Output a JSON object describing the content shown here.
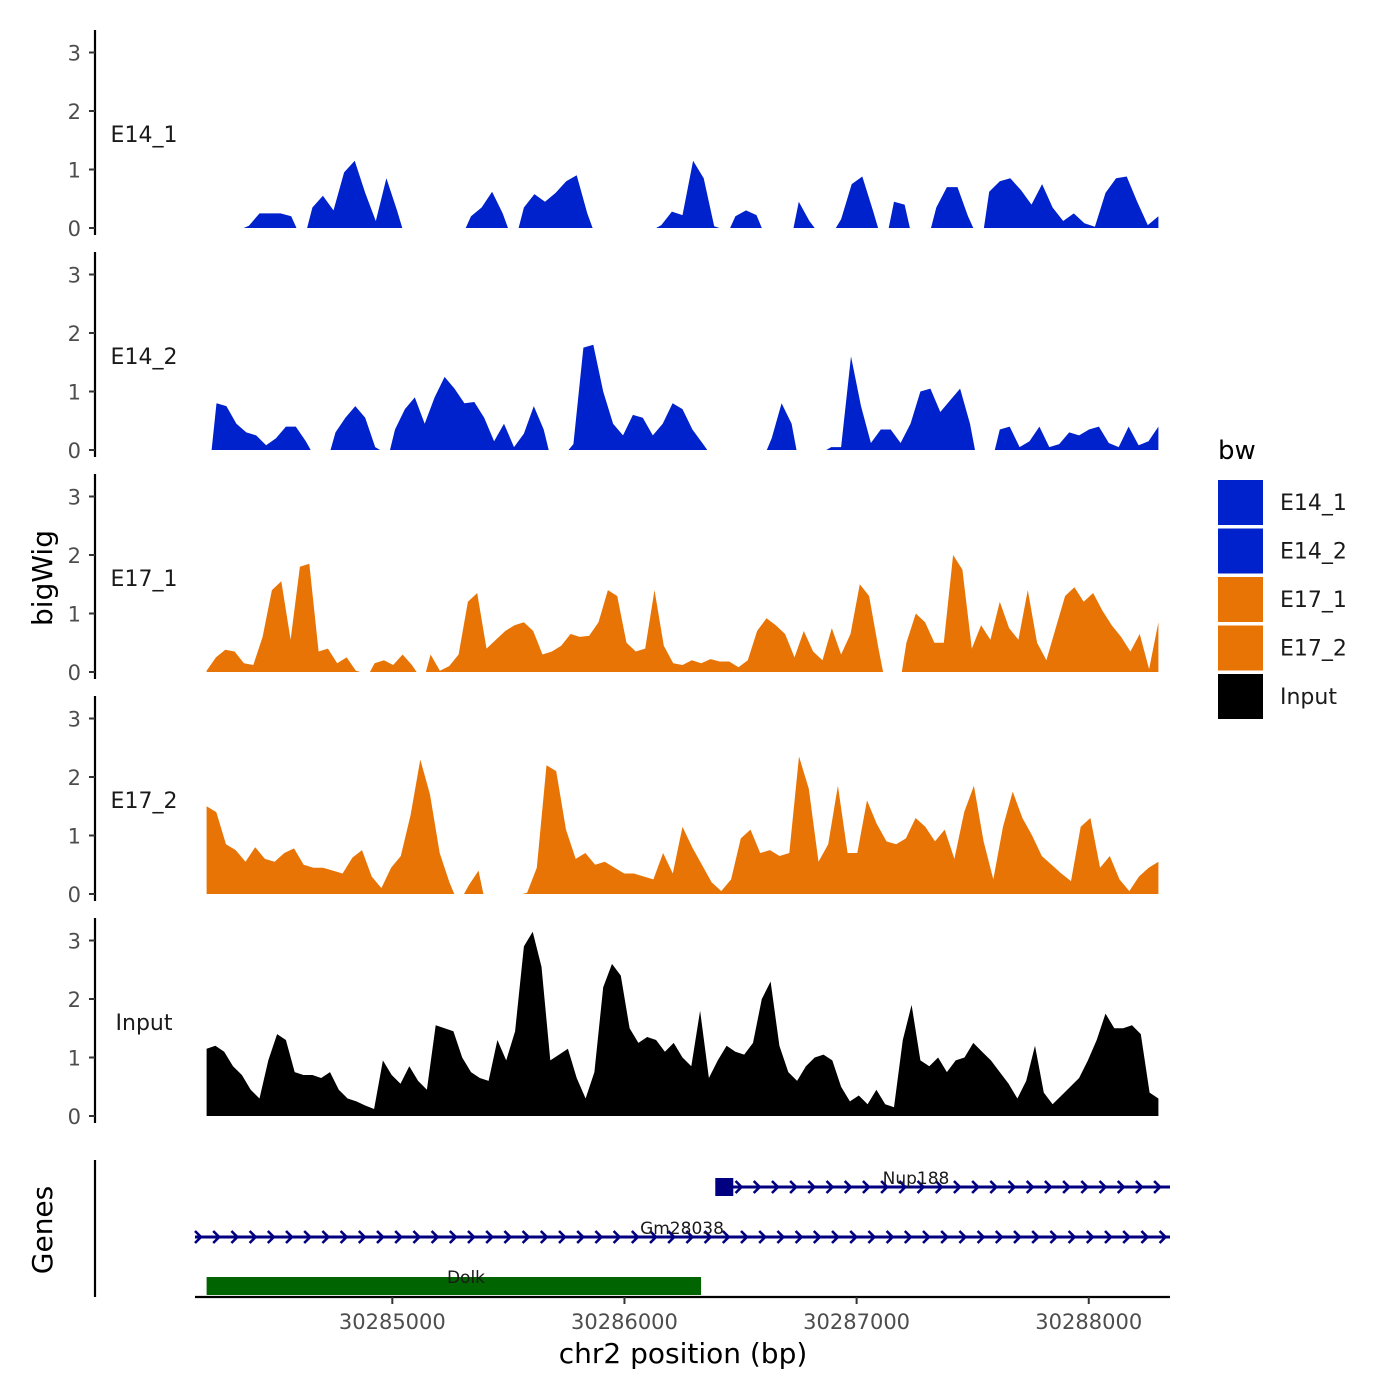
{
  "chart_data": {
    "type": "area",
    "ylabel": "bigWig",
    "genes_label": "Genes",
    "xlabel": "chr2 position (bp)",
    "xlim": [
      30284150,
      30288350
    ],
    "ylim": [
      0,
      3.3
    ],
    "y_ticks": [
      "0",
      "1",
      "2",
      "3"
    ],
    "x_ticks": [
      {
        "value": 30285000,
        "label": "30285000"
      },
      {
        "value": 30286000,
        "label": "30286000"
      },
      {
        "value": 30287000,
        "label": "30287000"
      },
      {
        "value": 30288000,
        "label": "30288000"
      }
    ],
    "legend": {
      "title": "bw",
      "items": [
        {
          "label": "E14_1",
          "color": "#0022CC"
        },
        {
          "label": "E14_2",
          "color": "#0022CC"
        },
        {
          "label": "E17_1",
          "color": "#E87405"
        },
        {
          "label": "E17_2",
          "color": "#E87405"
        },
        {
          "label": "Input",
          "color": "#000000"
        }
      ]
    },
    "series": [
      {
        "name": "E14_1",
        "label": "E14_1",
        "color": "#0022CC",
        "x_start": 30284200,
        "x_end": 30288300,
        "values": [
          0,
          0,
          0,
          0,
          0.04,
          0.25,
          0.25,
          0.25,
          0.2,
          0,
          0.35,
          0.55,
          0.3,
          0.95,
          1.15,
          0.6,
          0.12,
          0.85,
          0.3,
          0,
          0,
          0,
          0,
          0,
          0,
          0.2,
          0.35,
          0.62,
          0.25,
          0,
          0.35,
          0.58,
          0.45,
          0.6,
          0.8,
          0.9,
          0.25,
          0,
          0,
          0,
          0,
          0,
          0,
          0.05,
          0.28,
          0.22,
          1.15,
          0.85,
          0.03,
          0,
          0.2,
          0.3,
          0.22,
          0,
          0,
          0,
          0.45,
          0.12,
          0,
          0,
          0.15,
          0.75,
          0.88,
          0.3,
          0,
          0.45,
          0.4,
          0,
          0,
          0.35,
          0.7,
          0.7,
          0.2,
          0,
          0.62,
          0.8,
          0.85,
          0.65,
          0.4,
          0.75,
          0.35,
          0.12,
          0.25,
          0.08,
          0.02,
          0.6,
          0.85,
          0.88,
          0.45,
          0.05,
          0.2
        ]
      },
      {
        "name": "E14_2",
        "label": "E14_2",
        "color": "#0022CC",
        "x_start": 30284200,
        "x_end": 30288300,
        "values": [
          0,
          0.8,
          0.75,
          0.45,
          0.3,
          0.25,
          0.08,
          0.2,
          0.4,
          0.4,
          0.15,
          0,
          0,
          0.3,
          0.55,
          0.75,
          0.55,
          0.05,
          0,
          0.35,
          0.7,
          0.9,
          0.45,
          0.9,
          1.25,
          1.05,
          0.8,
          0.82,
          0.55,
          0.15,
          0.45,
          0.05,
          0.28,
          0.75,
          0.35,
          0,
          0,
          0.1,
          1.75,
          1.8,
          1.0,
          0.45,
          0.25,
          0.6,
          0.55,
          0.25,
          0.45,
          0.8,
          0.7,
          0.35,
          0.12,
          0,
          0,
          0,
          0,
          0,
          0,
          0.2,
          0.8,
          0.45,
          0,
          0,
          0,
          0.05,
          0.05,
          1.6,
          0.75,
          0.12,
          0.35,
          0.35,
          0.12,
          0.45,
          1.0,
          1.05,
          0.65,
          0.85,
          1.05,
          0.45,
          0,
          0,
          0.35,
          0.4,
          0.05,
          0.15,
          0.4,
          0.05,
          0.1,
          0.3,
          0.25,
          0.35,
          0.4,
          0.12,
          0.05,
          0.4,
          0.08,
          0.15,
          0.4
        ]
      },
      {
        "name": "E17_1",
        "label": "E17_1",
        "color": "#E87405",
        "x_start": 30284200,
        "x_end": 30288300,
        "values": [
          0.02,
          0.25,
          0.38,
          0.35,
          0.15,
          0.12,
          0.6,
          1.4,
          1.55,
          0.55,
          1.8,
          1.85,
          0.35,
          0.4,
          0.15,
          0.25,
          0.02,
          0,
          0.15,
          0.2,
          0.12,
          0.3,
          0.12,
          0,
          0.3,
          0.02,
          0.1,
          0.3,
          1.2,
          1.35,
          0.4,
          0.55,
          0.7,
          0.8,
          0.85,
          0.7,
          0.3,
          0.35,
          0.45,
          0.65,
          0.6,
          0.62,
          0.85,
          1.4,
          1.3,
          0.5,
          0.35,
          0.4,
          1.4,
          0.45,
          0.15,
          0.12,
          0.2,
          0.15,
          0.22,
          0.18,
          0.18,
          0.08,
          0.2,
          0.7,
          0.92,
          0.8,
          0.65,
          0.25,
          0.7,
          0.35,
          0.2,
          0.75,
          0.3,
          0.65,
          1.5,
          1.3,
          0.4,
          0,
          0,
          0.5,
          1.0,
          0.85,
          0.5,
          0.5,
          2.0,
          1.75,
          0.4,
          0.8,
          0.55,
          1.2,
          0.75,
          0.55,
          1.4,
          0.5,
          0.2,
          0.75,
          1.3,
          1.45,
          1.2,
          1.35,
          1.05,
          0.8,
          0.6,
          0.35,
          0.65,
          0.05,
          0.85
        ]
      },
      {
        "name": "E17_2",
        "label": "E17_2",
        "color": "#E87405",
        "x_start": 30284200,
        "x_end": 30288300,
        "values": [
          1.5,
          1.4,
          0.85,
          0.75,
          0.55,
          0.8,
          0.6,
          0.55,
          0.7,
          0.78,
          0.5,
          0.45,
          0.45,
          0.4,
          0.35,
          0.62,
          0.75,
          0.3,
          0.1,
          0.45,
          0.65,
          1.35,
          2.3,
          1.7,
          0.7,
          0.2,
          0,
          0.15,
          0.4,
          0,
          0,
          0,
          0,
          0.02,
          0.45,
          2.2,
          2.1,
          1.1,
          0.6,
          0.7,
          0.5,
          0.55,
          0.45,
          0.35,
          0.35,
          0.3,
          0.25,
          0.7,
          0.35,
          1.15,
          0.8,
          0.5,
          0.2,
          0.05,
          0.25,
          0.95,
          1.1,
          0.7,
          0.75,
          0.65,
          0.7,
          2.35,
          1.8,
          0.55,
          0.85,
          1.85,
          0.7,
          0.7,
          1.6,
          1.2,
          0.9,
          0.85,
          0.95,
          1.3,
          1.15,
          0.9,
          1.1,
          0.6,
          1.4,
          1.85,
          0.9,
          0.25,
          1.15,
          1.75,
          1.3,
          1.0,
          0.65,
          0.5,
          0.35,
          0.22,
          1.15,
          1.3,
          0.45,
          0.65,
          0.25,
          0.05,
          0.3,
          0.45,
          0.55
        ]
      },
      {
        "name": "Input",
        "label": "Input",
        "color": "#000000",
        "x_start": 30284200,
        "x_end": 30288300,
        "values": [
          1.15,
          1.2,
          1.1,
          0.85,
          0.7,
          0.45,
          0.3,
          0.95,
          1.4,
          1.3,
          0.75,
          0.7,
          0.7,
          0.65,
          0.75,
          0.45,
          0.3,
          0.25,
          0.18,
          0.12,
          0.95,
          0.7,
          0.55,
          0.85,
          0.6,
          0.45,
          1.55,
          1.5,
          1.45,
          1.0,
          0.75,
          0.65,
          0.6,
          1.3,
          0.95,
          1.45,
          2.9,
          3.15,
          2.55,
          0.95,
          1.05,
          1.15,
          0.65,
          0.3,
          0.75,
          2.2,
          2.6,
          2.4,
          1.5,
          1.25,
          1.35,
          1.3,
          1.1,
          1.25,
          1.0,
          0.85,
          1.8,
          0.65,
          0.95,
          1.2,
          1.1,
          1.05,
          1.25,
          2.0,
          2.3,
          1.2,
          0.75,
          0.6,
          0.85,
          1.0,
          1.05,
          0.95,
          0.5,
          0.25,
          0.35,
          0.2,
          0.45,
          0.2,
          0.15,
          1.3,
          1.9,
          0.95,
          0.85,
          1.0,
          0.75,
          0.95,
          1.0,
          1.25,
          1.1,
          0.95,
          0.75,
          0.55,
          0.3,
          0.6,
          1.2,
          0.4,
          0.2,
          0.35,
          0.5,
          0.65,
          0.95,
          1.3,
          1.75,
          1.5,
          1.5,
          1.55,
          1.4,
          0.4,
          0.3
        ]
      }
    ],
    "genes": [
      {
        "name": "Nup188",
        "start": 30286400,
        "end": 30288350,
        "strand": "+",
        "color": "#000080",
        "marker_at": 30286430
      },
      {
        "name": "Gm28038",
        "start": 30284150,
        "end": 30288350,
        "strand": "+",
        "color": "#000080"
      },
      {
        "name": "Dolk",
        "start": 30284200,
        "end": 30286330,
        "strand": "+",
        "color": "#006400"
      }
    ]
  }
}
